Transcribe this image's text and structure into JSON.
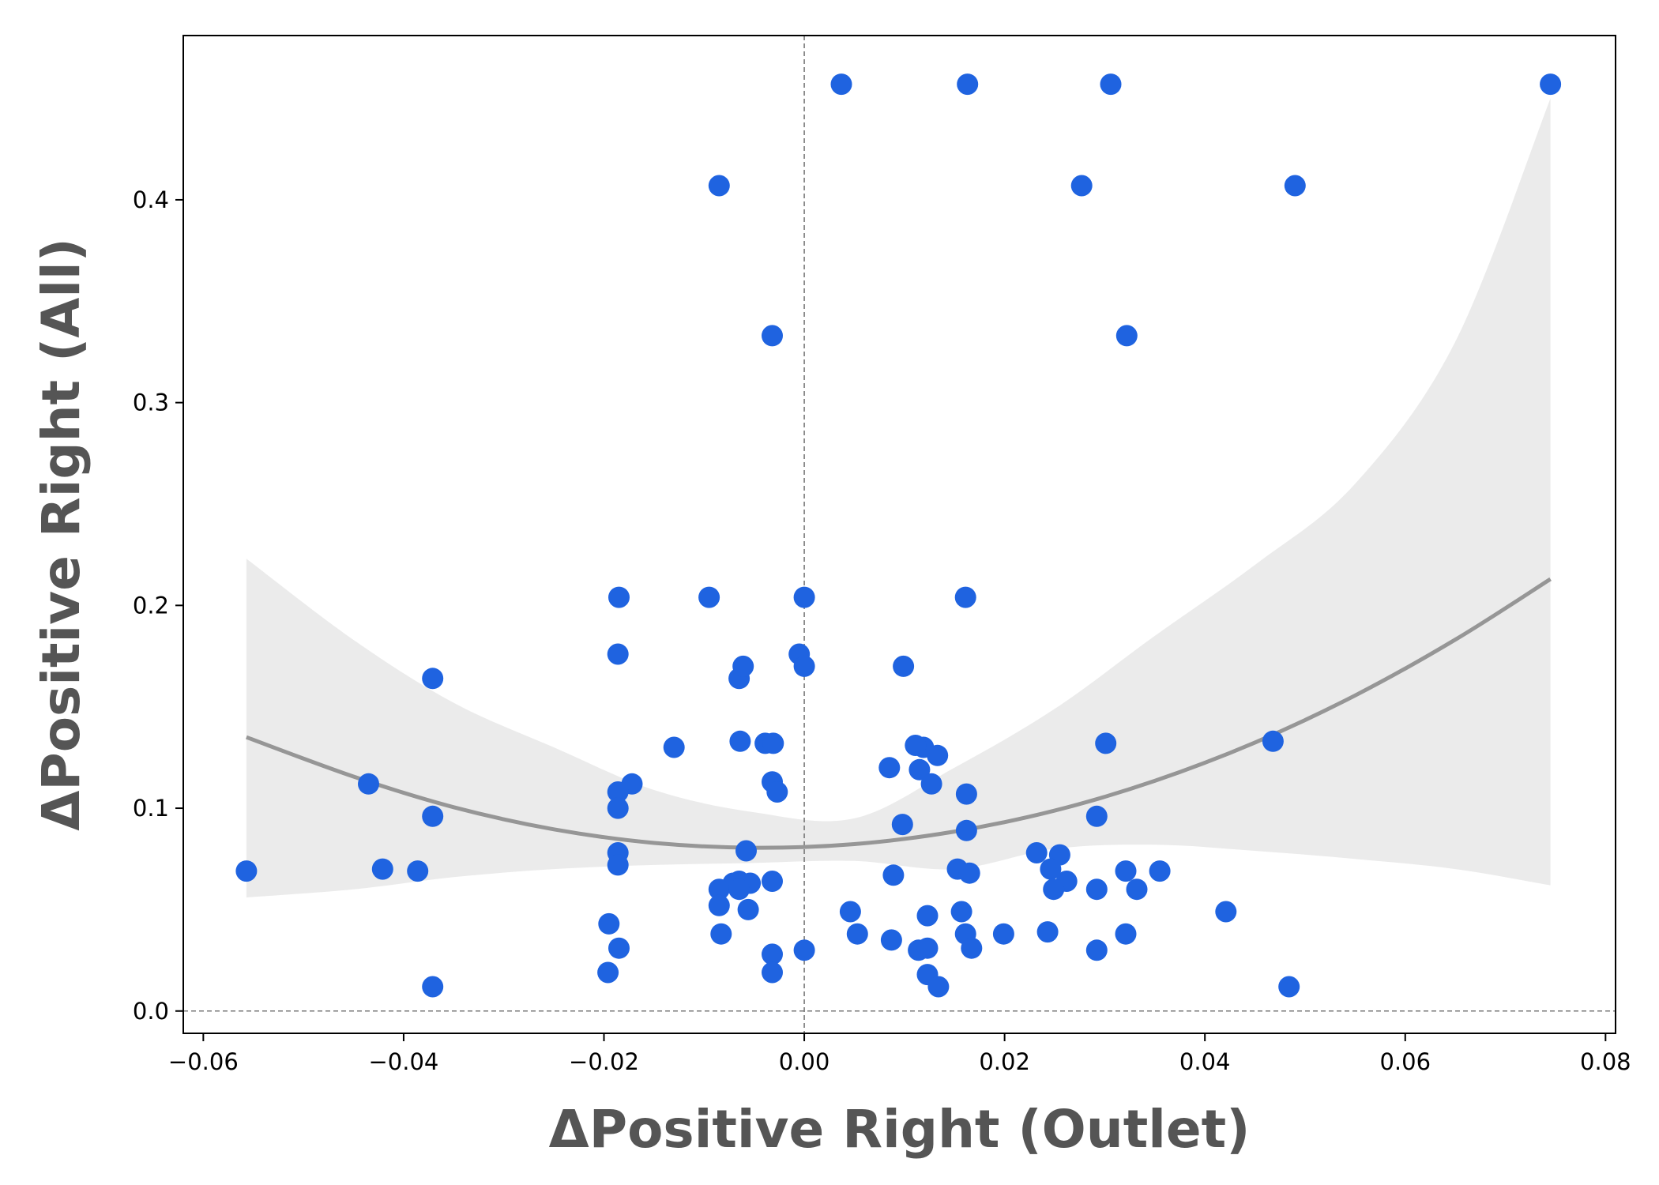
{
  "chart_data": {
    "type": "scatter",
    "xlabel": "ΔPositive Right  (Outlet)",
    "ylabel": "ΔPositive Right  (All)",
    "xlim": [
      -0.062,
      0.081
    ],
    "ylim": [
      -0.011,
      0.481
    ],
    "xticks": [
      -0.06,
      -0.04,
      -0.02,
      0.0,
      0.02,
      0.04,
      0.06,
      0.08
    ],
    "xtick_labels": [
      "−0.06",
      "−0.04",
      "−0.02",
      "0.00",
      "0.02",
      "0.04",
      "0.06",
      "0.08"
    ],
    "yticks": [
      0.0,
      0.1,
      0.2,
      0.3,
      0.4
    ],
    "ytick_labels": [
      "0.0",
      "0.1",
      "0.2",
      "0.3",
      "0.4"
    ],
    "reference_lines": {
      "x": 0.0,
      "y": 0.0,
      "style": "dashed",
      "color": "#777777"
    },
    "grid": false,
    "colors": {
      "points": "#1f63e0",
      "fit_line": "#969696",
      "band": "#ebebeb"
    },
    "fit": {
      "kind": "quadratic regression with confidence band",
      "x": [
        -0.0557,
        -0.045,
        -0.035,
        -0.025,
        -0.015,
        -0.005,
        0.005,
        0.015,
        0.025,
        0.035,
        0.045,
        0.055,
        0.065,
        0.0745
      ],
      "y": [
        0.135,
        0.1156,
        0.1005,
        0.0896,
        0.0829,
        0.0805,
        0.0823,
        0.0885,
        0.0988,
        0.1135,
        0.1324,
        0.1556,
        0.1831,
        0.213
      ],
      "upper": [
        0.223,
        0.183,
        0.152,
        0.13,
        0.109,
        0.098,
        0.095,
        0.12,
        0.149,
        0.185,
        0.22,
        0.26,
        0.33,
        0.45
      ],
      "lower": [
        0.056,
        0.06,
        0.066,
        0.07,
        0.072,
        0.073,
        0.074,
        0.07,
        0.08,
        0.082,
        0.079,
        0.075,
        0.07,
        0.062
      ]
    },
    "series": [
      {
        "x": [
          0.0037,
          0.0163,
          0.0306,
          0.0745,
          -0.0085,
          0.0277,
          0.049,
          -0.0032,
          0.0322,
          -0.0095,
          -0.0185,
          0.0,
          0.0161,
          -0.0186,
          -0.0005,
          0.0099,
          -0.0371,
          -0.0065,
          -0.0061,
          0.0,
          -0.0064,
          -0.013,
          -0.0039,
          -0.0031,
          0.0301,
          0.0468,
          0.0119,
          0.0133,
          0.0111,
          0.0085,
          0.0115,
          -0.0435,
          -0.0172,
          -0.0032,
          0.0127,
          -0.0186,
          -0.0027,
          0.0162,
          -0.0186,
          -0.0371,
          0.0292,
          0.0098,
          0.0162,
          -0.0557,
          -0.0421,
          -0.0386,
          -0.0186,
          -0.0186,
          0.0232,
          0.0255,
          0.0153,
          0.0246,
          0.0321,
          0.0355,
          0.0089,
          -0.0058,
          -0.0065,
          -0.0071,
          0.0165,
          0.0262,
          -0.0054,
          -0.0032,
          -0.0085,
          0.0249,
          0.0332,
          0.0292,
          -0.0065,
          -0.0085,
          0.0046,
          -0.0056,
          0.0421,
          0.0123,
          0.0157,
          -0.0195,
          0.0243,
          0.0053,
          0.0199,
          -0.0083,
          0.0321,
          0.0161,
          0.0087,
          -0.0185,
          0.0167,
          0.0114,
          0.0123,
          0.0292,
          -0.0032,
          -0.0196,
          -0.0032,
          0.0123,
          0.0134,
          -0.0371,
          0.0484,
          0.0
        ],
        "y": [
          0.457,
          0.457,
          0.457,
          0.457,
          0.407,
          0.407,
          0.407,
          0.333,
          0.333,
          0.204,
          0.204,
          0.204,
          0.204,
          0.176,
          0.176,
          0.17,
          0.164,
          0.164,
          0.17,
          0.17,
          0.133,
          0.13,
          0.132,
          0.132,
          0.132,
          0.133,
          0.13,
          0.126,
          0.131,
          0.12,
          0.119,
          0.112,
          0.112,
          0.113,
          0.112,
          0.108,
          0.108,
          0.107,
          0.1,
          0.096,
          0.096,
          0.092,
          0.089,
          0.069,
          0.07,
          0.069,
          0.078,
          0.072,
          0.078,
          0.077,
          0.07,
          0.07,
          0.069,
          0.069,
          0.067,
          0.079,
          0.064,
          0.063,
          0.068,
          0.064,
          0.063,
          0.064,
          0.06,
          0.06,
          0.06,
          0.06,
          0.06,
          0.052,
          0.049,
          0.05,
          0.049,
          0.047,
          0.049,
          0.043,
          0.039,
          0.038,
          0.038,
          0.038,
          0.038,
          0.038,
          0.035,
          0.031,
          0.031,
          0.03,
          0.031,
          0.03,
          0.028,
          0.019,
          0.019,
          0.018,
          0.012,
          0.012,
          0.012,
          0.03
        ]
      }
    ]
  }
}
